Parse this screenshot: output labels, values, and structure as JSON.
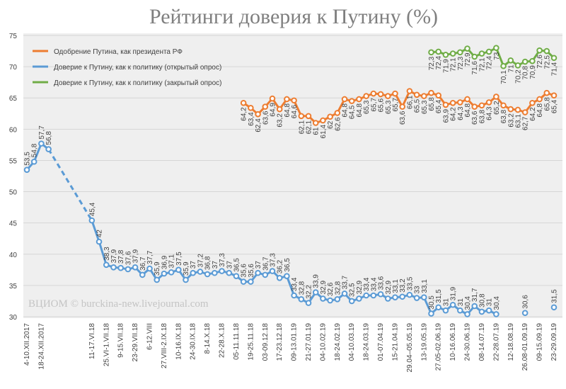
{
  "chart_data": {
    "type": "line",
    "title": "Рейтинги доверия к Путину (%)",
    "annotation": "ВЦИОМ © burckina-new.livejournal.com",
    "categories": [
      "4-10.XII.2017",
      null,
      "18-24.XII.2017",
      null,
      null,
      null,
      null,
      null,
      null,
      "11-17.VI.18",
      null,
      "25.VI-1.VII.18",
      null,
      "9-15.VII.18",
      null,
      "23-29.VII.18",
      null,
      "6-12.VIII",
      null,
      "27.VIII-2.IX.18",
      null,
      "10-16.IX.18",
      null,
      "24-30.IX.18",
      null,
      "8-14.X.18",
      null,
      "22-28.X.18",
      null,
      "05-11.11.18",
      null,
      "19-25.11.18",
      null,
      "03-09.12.18",
      null,
      "17-23.12.18",
      null,
      "09-13.01.19",
      null,
      "21-27.01.19",
      null,
      "04-10.02.19",
      null,
      "18-24.02.19",
      null,
      "04-10.03.19",
      null,
      "18-24.03.19",
      null,
      "01-07.04.19",
      null,
      "15-21.04.19",
      null,
      "29.04–05.05.19",
      null,
      "13-19.05.19",
      null,
      "27.05-02.06.19",
      null,
      "10-16.06.19",
      null,
      "24-30.06.19",
      null,
      "08-14.07.19",
      null,
      "22-28.07.19",
      null,
      "12-18.08.19",
      null,
      "26.08-01.09.19",
      null,
      "09-15.09.19",
      null,
      "23-29.09.19"
    ],
    "series": [
      {
        "name": "Одобрение Путина, как президента РФ",
        "color": "#ed7d31",
        "label_side": "below",
        "values": [
          null,
          null,
          null,
          null,
          null,
          null,
          null,
          null,
          null,
          null,
          null,
          null,
          null,
          null,
          null,
          null,
          null,
          null,
          null,
          null,
          null,
          null,
          null,
          null,
          null,
          null,
          null,
          null,
          null,
          null,
          64.2,
          63.4,
          62.4,
          63.6,
          64.9,
          63.2,
          64.8,
          64.6,
          62.1,
          62.1,
          61,
          61.4,
          62,
          62.6,
          64.8,
          64.5,
          64.8,
          65.3,
          65.7,
          65.6,
          65.3,
          65.7,
          63.6,
          66.1,
          65.5,
          65.3,
          65.8,
          65.4,
          63.9,
          64.2,
          64.3,
          64.8,
          63.6,
          63.8,
          64.3,
          65.2,
          63.8,
          63.2,
          63.1,
          62.7,
          64.2,
          64.8,
          65.8,
          65.4
        ],
        "value_labels": [
          null,
          null,
          null,
          null,
          null,
          null,
          null,
          null,
          null,
          null,
          null,
          null,
          null,
          null,
          null,
          null,
          null,
          null,
          null,
          null,
          null,
          null,
          null,
          null,
          null,
          null,
          null,
          null,
          null,
          null,
          "64,2",
          "63,4",
          "62,4",
          "63,6",
          "64,9",
          "63,2",
          "64,8",
          "64,6",
          "62,1",
          "62,1",
          "61",
          "61,4",
          "62",
          "62,6",
          "64,8",
          "64,5",
          "64,8",
          "65,3",
          "65,7",
          "65,6",
          "65,3",
          "65,7",
          "63,6",
          "66,1",
          "65,5",
          "65,3",
          "65,8",
          "65,4",
          "63,9",
          "64,2",
          "64,3",
          "64,8",
          "63,6",
          "63,8",
          "64,3",
          "65,2",
          "63,8",
          "63,2",
          "63,1",
          "62,7",
          "64,2",
          "64,8",
          "65,8",
          "65,4"
        ]
      },
      {
        "name": "Доверие к Путину, как к политику (открытый опрос)",
        "color": "#5b9bd5",
        "label_side": "above",
        "values": [
          53.5,
          54.8,
          57.7,
          56.8,
          null,
          null,
          null,
          null,
          null,
          45.4,
          42,
          38.3,
          37.9,
          37.8,
          37.6,
          37.9,
          36.7,
          37.7,
          35.9,
          36.9,
          37.1,
          37.5,
          35.9,
          37,
          37.2,
          36.8,
          37,
          37.3,
          37,
          36.5,
          35.6,
          35.6,
          37,
          36.7,
          37.3,
          36.2,
          36.5,
          33.4,
          32.8,
          32.2,
          33.9,
          32.9,
          32.6,
          32.8,
          33.7,
          32.5,
          32.9,
          33.4,
          33.4,
          33.6,
          32.9,
          33.1,
          33.2,
          33.5,
          33,
          33.1,
          30.5,
          31.5,
          31,
          31.9,
          31,
          30.4,
          31.7,
          30.8,
          31,
          30.4,
          null,
          null,
          null,
          30.6,
          null,
          null,
          null,
          31.5
        ],
        "value_labels": [
          "53,5",
          "54,8",
          "57,7",
          "56,8",
          null,
          null,
          null,
          null,
          null,
          "45,4",
          "42",
          "38,3",
          "37,9",
          "37,8",
          "37,6",
          "37,9",
          "36,7",
          "37,7",
          "35,9",
          "36,9",
          "37,1",
          "37,5",
          "35,9",
          "37",
          "37,2",
          "36,8",
          "37",
          "37,3",
          "37",
          "36,5",
          "35,6",
          "35,6",
          "37",
          "36,7",
          "37,3",
          "36,2",
          "36,5",
          "33,4",
          "32,8",
          "32,2",
          "33,9",
          "32,9",
          "32,6",
          "32,8",
          "33,7",
          "32,5",
          "32,9",
          "33,4",
          "33,4",
          "33,6",
          "32,9",
          "33,1",
          "33,2",
          "33,5",
          "33",
          "33,1",
          "30,5",
          "31,5",
          "31",
          "31,9",
          "31",
          "30,4",
          "31,7",
          "30,8",
          "31",
          "30,4",
          null,
          null,
          null,
          "30,6",
          null,
          null,
          null,
          "31,5"
        ]
      },
      {
        "name": "Доверие к Путину, как к политику (закрытый опрос)",
        "color": "#70ad47",
        "label_side": "below",
        "values": [
          null,
          null,
          null,
          null,
          null,
          null,
          null,
          null,
          null,
          null,
          null,
          null,
          null,
          null,
          null,
          null,
          null,
          null,
          null,
          null,
          null,
          null,
          null,
          null,
          null,
          null,
          null,
          null,
          null,
          null,
          null,
          null,
          null,
          null,
          null,
          null,
          null,
          null,
          null,
          null,
          null,
          null,
          null,
          null,
          null,
          null,
          null,
          null,
          null,
          null,
          null,
          null,
          null,
          null,
          null,
          null,
          72.3,
          72.4,
          71.9,
          72.1,
          72.3,
          72.9,
          71.6,
          72.1,
          72.4,
          73,
          70.1,
          71,
          70.2,
          70.8,
          70.9,
          72.6,
          72.5,
          71.4
        ],
        "value_labels": [
          null,
          null,
          null,
          null,
          null,
          null,
          null,
          null,
          null,
          null,
          null,
          null,
          null,
          null,
          null,
          null,
          null,
          null,
          null,
          null,
          null,
          null,
          null,
          null,
          null,
          null,
          null,
          null,
          null,
          null,
          null,
          null,
          null,
          null,
          null,
          null,
          null,
          null,
          null,
          null,
          null,
          null,
          null,
          null,
          null,
          null,
          null,
          null,
          null,
          null,
          null,
          null,
          null,
          null,
          null,
          null,
          "72,3",
          "72,4",
          "71,9",
          "72,1",
          "72,3",
          "72,9",
          "71,6",
          "72,1",
          "72,4",
          "73",
          "70,1",
          "71",
          "70,2",
          "70,8",
          "70,9",
          "72,6",
          "72,5",
          "71,4"
        ]
      }
    ],
    "ylim": [
      30,
      75
    ],
    "yticks": [
      30,
      35,
      40,
      45,
      50,
      55,
      60,
      65,
      70,
      75
    ],
    "grid": true,
    "legend": "upper left"
  }
}
